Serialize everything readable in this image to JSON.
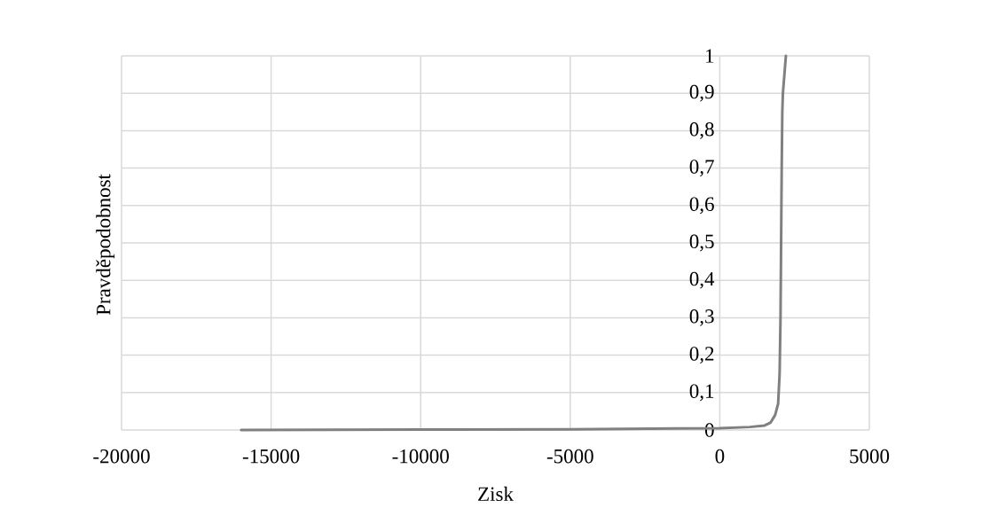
{
  "chart_data": {
    "type": "line",
    "xlabel": "Zisk",
    "ylabel": "Pravděpodobnost",
    "x": [
      -16000,
      -10000,
      -5000,
      0,
      1000,
      1500,
      1700,
      1850,
      1950,
      2000,
      2030,
      2050,
      2070,
      2090,
      2110,
      2160,
      2210
    ],
    "series": [
      {
        "color": "#808080",
        "values": [
          0,
          0.001,
          0.002,
          0.005,
          0.008,
          0.012,
          0.02,
          0.04,
          0.07,
          0.15,
          0.3,
          0.5,
          0.7,
          0.85,
          0.9,
          0.95,
          1
        ]
      }
    ],
    "xlim": [
      -20000,
      5000
    ],
    "xticks": [
      -20000,
      -15000,
      -10000,
      -5000,
      0,
      5000
    ],
    "ylim": [
      0,
      1
    ],
    "yticks": [
      {
        "value": 0,
        "label": "0"
      },
      {
        "value": 0.1,
        "label": "0,1"
      },
      {
        "value": 0.2,
        "label": "0,2"
      },
      {
        "value": 0.3,
        "label": "0,3"
      },
      {
        "value": 0.4,
        "label": "0,4"
      },
      {
        "value": 0.5,
        "label": "0,5"
      },
      {
        "value": 0.6,
        "label": "0,6"
      },
      {
        "value": 0.7,
        "label": "0,7"
      },
      {
        "value": 0.8,
        "label": "0,8"
      },
      {
        "value": 0.9,
        "label": "0,9"
      },
      {
        "value": 1,
        "label": "1"
      }
    ],
    "grid": true
  }
}
